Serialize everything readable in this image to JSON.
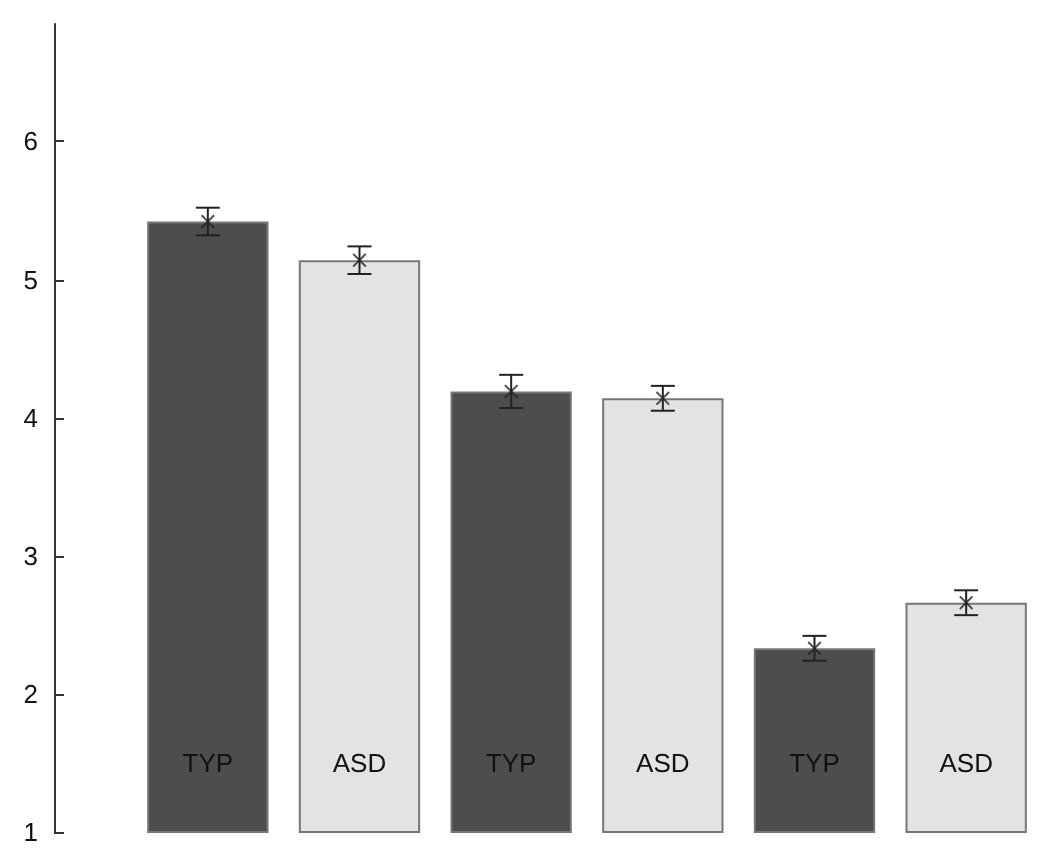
{
  "chart_data": {
    "type": "bar",
    "categories": [
      "TYP",
      "ASD",
      "TYP",
      "ASD",
      "TYP",
      "ASD"
    ],
    "series": [
      {
        "values": [
          5.42,
          5.14,
          4.19,
          4.14,
          2.33,
          2.66
        ],
        "colors": [
          "#4d4d4d",
          "#e3e3e3",
          "#4d4d4d",
          "#e3e3e3",
          "#4d4d4d",
          "#e3e3e3"
        ],
        "errors": [
          0.1,
          0.1,
          0.12,
          0.09,
          0.09,
          0.09
        ]
      },
      {
        "type": "scatter",
        "values": [
          5.42,
          5.14,
          4.19,
          4.14,
          2.33,
          2.66
        ],
        "color": "#222222",
        "marker": "cross"
      }
    ],
    "ylim": [
      1,
      6.85
    ],
    "yticks": [
      1,
      2,
      3,
      4,
      5,
      6
    ],
    "grid": false
  }
}
